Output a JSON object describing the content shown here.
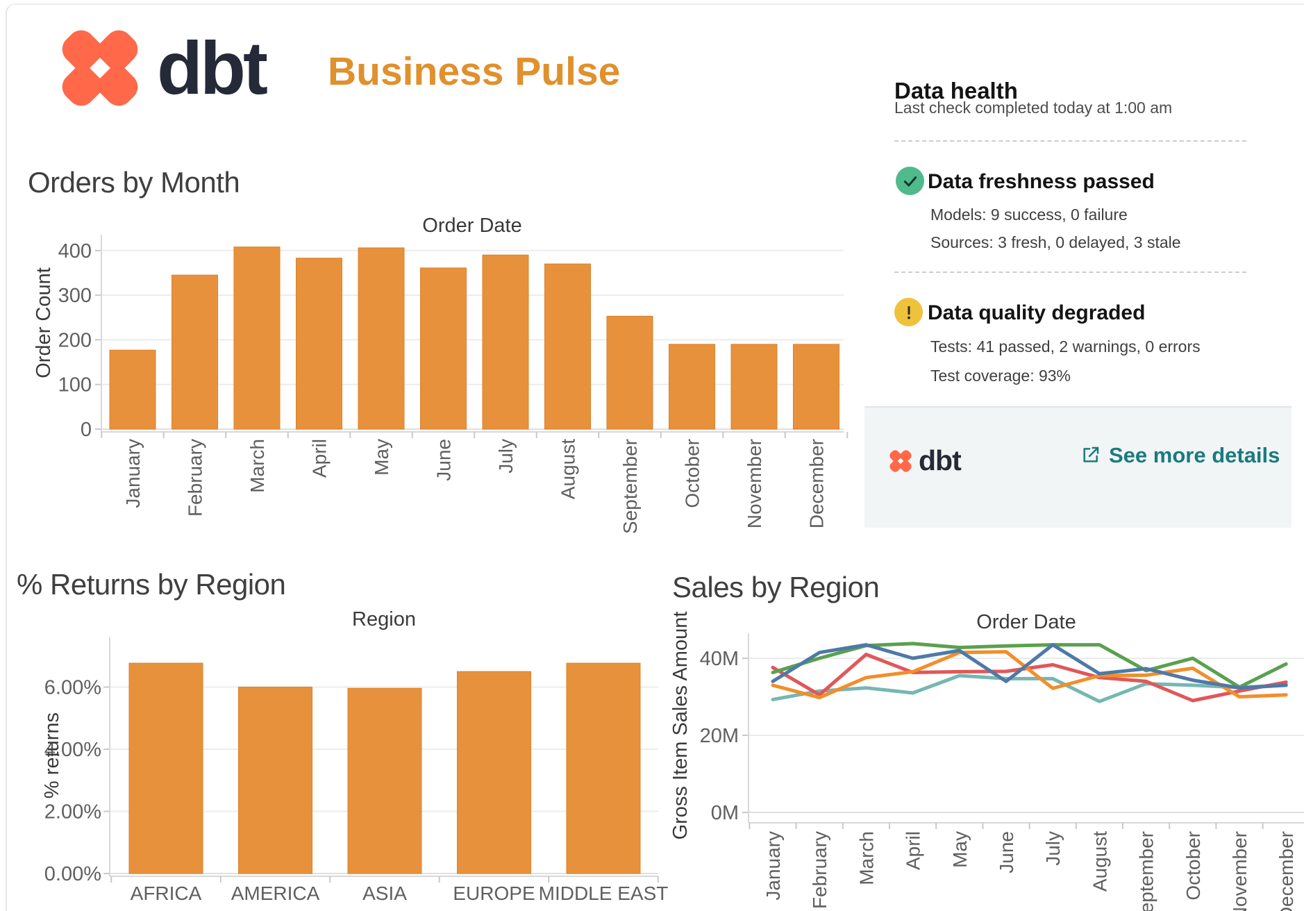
{
  "header": {
    "logo": {
      "wordmark": "dbt",
      "x_color": "#FF6849",
      "text_color": "#262A38"
    },
    "title": "Business Pulse",
    "title_color": "#E0902D"
  },
  "data_health": {
    "title": "Data health",
    "subtitle": "Last check completed today at 1:00 am",
    "items": [
      {
        "icon": "check-circle",
        "icon_color": "#4FBA8B",
        "title": "Data freshness passed",
        "lines": [
          "Models: 9 success, 0 failure",
          "Sources: 3 fresh, 0 delayed, 3 stale"
        ]
      },
      {
        "icon": "warning-circle",
        "icon_color": "#EFC23E",
        "title": "Data quality degraded",
        "lines": [
          "Tests: 41 passed, 2 warnings, 0 errors",
          "Test coverage: 93%"
        ]
      }
    ],
    "footer": {
      "wordmark": "dbt",
      "link": "See more details",
      "link_color": "#1A7A80"
    }
  },
  "chart_data": [
    {
      "id": "orders_by_month",
      "type": "bar",
      "title": "Orders by Month",
      "xlabel": "Order Date",
      "ylabel": "Order Count",
      "categories": [
        "January",
        "February",
        "March",
        "April",
        "May",
        "June",
        "July",
        "August",
        "September",
        "October",
        "November",
        "December"
      ],
      "values": [
        177,
        345,
        408,
        383,
        406,
        361,
        390,
        370,
        253,
        190,
        190,
        190
      ],
      "yticks": [
        {
          "v": 0,
          "label": "0"
        },
        {
          "v": 100,
          "label": "100"
        },
        {
          "v": 200,
          "label": "200"
        },
        {
          "v": 300,
          "label": "300"
        },
        {
          "v": 400,
          "label": "400"
        }
      ],
      "ylim": [
        0,
        435
      ],
      "bar_color": "#E8913C",
      "grid": true,
      "legend": "none"
    },
    {
      "id": "returns_by_region",
      "type": "bar",
      "title": "% Returns by Region",
      "xlabel": "Region",
      "ylabel": "% returns",
      "categories": [
        "AFRICA",
        "AMERICA",
        "ASIA",
        "EUROPE",
        "MIDDLE EAST"
      ],
      "values": [
        6.77,
        6.0,
        5.96,
        6.5,
        6.77
      ],
      "yticks": [
        {
          "v": 0,
          "label": "0.00%"
        },
        {
          "v": 2,
          "label": "2.00%"
        },
        {
          "v": 4,
          "label": "4.00%"
        },
        {
          "v": 6,
          "label": "6.00%"
        }
      ],
      "ylim": [
        0,
        7.6
      ],
      "bar_color": "#E8913C",
      "grid": true,
      "legend": "none"
    },
    {
      "id": "sales_by_region",
      "type": "line",
      "title": "Sales by Region",
      "xlabel": "Order Date",
      "ylabel": "Gross Item Sales Amount",
      "categories": [
        "January",
        "February",
        "March",
        "April",
        "May",
        "June",
        "July",
        "August",
        "September",
        "October",
        "November",
        "December"
      ],
      "series": [
        {
          "name": "teal",
          "color": "#76B7B2",
          "values": [
            29.3,
            31.5,
            32.3,
            31.0,
            35.5,
            34.7,
            34.7,
            28.8,
            33.4,
            33.0,
            32.4,
            33.1
          ]
        },
        {
          "name": "red",
          "color": "#E15759",
          "values": [
            37.6,
            30.5,
            41.0,
            36.3,
            36.5,
            36.6,
            38.3,
            35.0,
            34.0,
            29.0,
            31.5,
            33.8
          ]
        },
        {
          "name": "orange",
          "color": "#F28E2B",
          "values": [
            33.0,
            29.8,
            35.0,
            36.5,
            41.5,
            41.7,
            32.2,
            35.5,
            35.6,
            37.4,
            30.0,
            30.5
          ]
        },
        {
          "name": "green",
          "color": "#59A14F",
          "values": [
            36.3,
            40.0,
            43.3,
            43.8,
            42.8,
            43.2,
            43.5,
            43.5,
            36.8,
            40.0,
            32.5,
            38.5
          ]
        },
        {
          "name": "blue",
          "color": "#4E79A7",
          "values": [
            34.0,
            41.5,
            43.5,
            40.0,
            42.0,
            34.0,
            43.5,
            36.0,
            37.3,
            34.3,
            32.3,
            33.0
          ]
        }
      ],
      "yticks": [
        {
          "v": 0,
          "label": "0M"
        },
        {
          "v": 20,
          "label": "20M"
        },
        {
          "v": 40,
          "label": "40M"
        }
      ],
      "ylim": [
        0,
        47
      ],
      "grid": true,
      "legend": "none"
    }
  ]
}
